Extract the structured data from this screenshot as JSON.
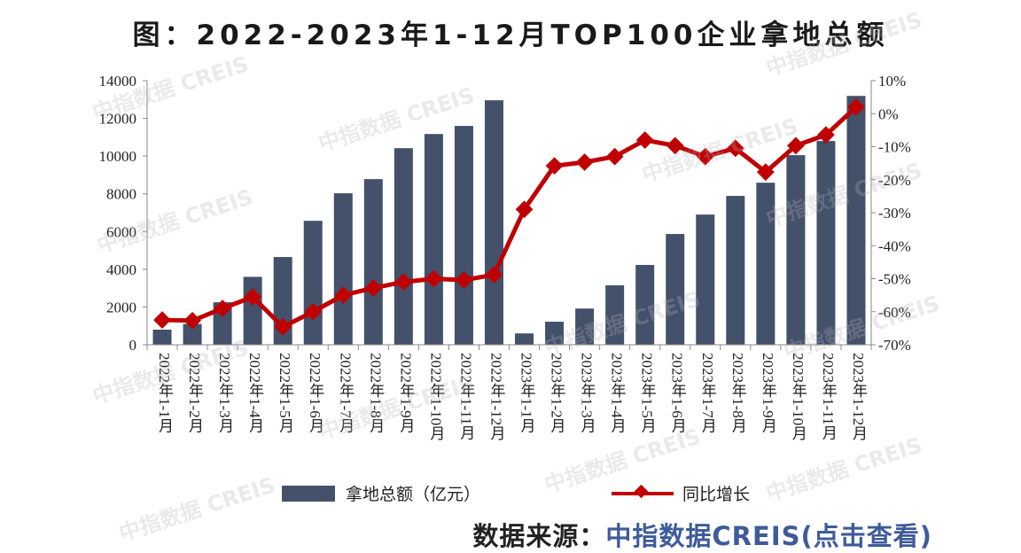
{
  "title": "图：2022-2023年1-12月TOP100企业拿地总额",
  "watermark": "中指数据 CREIS",
  "source": {
    "label": "数据来源：",
    "link": "中指数据CREIS(点击查看)"
  },
  "colors": {
    "bar": "#44516a",
    "line": "#c00000"
  },
  "chart_data": {
    "type": "bar+line",
    "title": "图：2022-2023年1-12月TOP100企业拿地总额",
    "categories": [
      "2022年1-1月",
      "2022年1-2月",
      "2022年1-3月",
      "2022年1-4月",
      "2022年1-5月",
      "2022年1-6月",
      "2022年1-7月",
      "2022年1-8月",
      "2022年1-9月",
      "2022年1-10月",
      "2022年1-11月",
      "2022年1-12月",
      "2023年1-1月",
      "2023年1-2月",
      "2023年1-3月",
      "2023年1-4月",
      "2023年1-5月",
      "2023年1-6月",
      "2023年1-7月",
      "2023年1-8月",
      "2023年1-9月",
      "2023年1-10月",
      "2023年1-11月",
      "2023年1-12月"
    ],
    "series": [
      {
        "name": "拿地总额（亿元）",
        "type": "bar",
        "axis": "left",
        "values": [
          800,
          1100,
          2250,
          3600,
          4650,
          6570,
          8030,
          8780,
          10420,
          11170,
          11600,
          12960,
          600,
          1220,
          1920,
          3150,
          4230,
          5870,
          6900,
          7890,
          8590,
          10050,
          10800,
          13190
        ]
      },
      {
        "name": "同比增长",
        "type": "line",
        "axis": "right",
        "unit": "%",
        "values": [
          -62.5,
          -62.7,
          -59,
          -55.5,
          -64.6,
          -60,
          -55,
          -52.8,
          -51,
          -50,
          -50.4,
          -48.8,
          -29,
          -15.8,
          -14.7,
          -13,
          -8,
          -9.7,
          -13,
          -10.5,
          -17.7,
          -9.7,
          -6.4,
          2
        ]
      }
    ],
    "y_left": {
      "range": [
        0,
        14000
      ],
      "ticks": [
        "0",
        "2000",
        "4000",
        "6000",
        "8000",
        "10000",
        "12000",
        "14000"
      ]
    },
    "y_right": {
      "range": [
        -70,
        10
      ],
      "ticks": [
        "-70%",
        "-60%",
        "-50%",
        "-40%",
        "-30%",
        "-20%",
        "-10%",
        "0%",
        "10%"
      ]
    },
    "legend": "bottom",
    "grid": false
  }
}
